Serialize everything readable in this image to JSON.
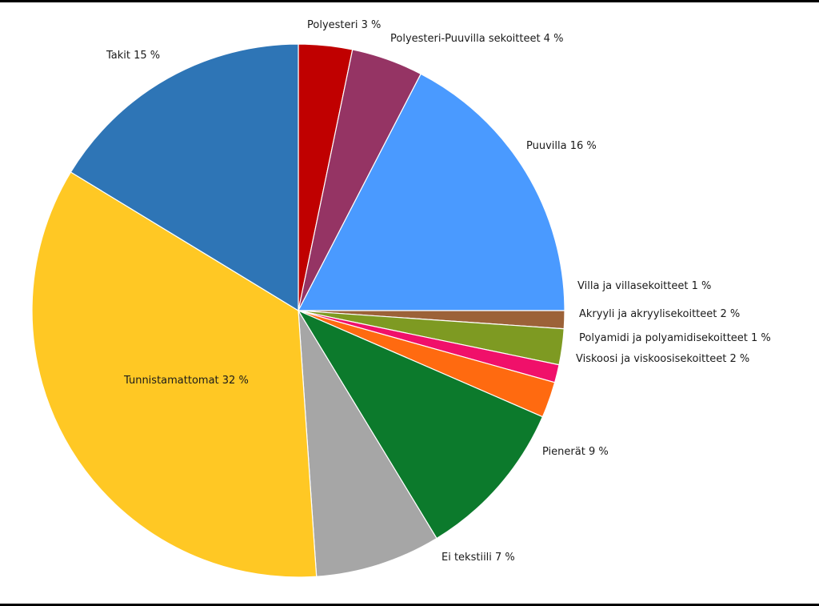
{
  "chart_data": {
    "type": "pie",
    "start_angle_deg": 0,
    "direction": "clockwise",
    "slices": [
      {
        "name": "Polyesteri",
        "value": 3,
        "label": "Polyesteri 3 %",
        "color": "#C00000"
      },
      {
        "name": "Polyesteri-Puuvilla sekoitteet",
        "value": 4,
        "label": "Polyesteri-Puuvilla sekoitteet 4 %",
        "color": "#953464"
      },
      {
        "name": "Puuvilla",
        "value": 16,
        "label": "Puuvilla 16 %",
        "color": "#4A9AFF"
      },
      {
        "name": "Villa ja villasekoitteet",
        "value": 1,
        "label": "Villa ja villasekoitteet 1 %",
        "color": "#9C6238"
      },
      {
        "name": "Akryyli ja akryylisekoitteet",
        "value": 2,
        "label": "Akryyli ja akryylisekoitteet 2 %",
        "color": "#7E9A22"
      },
      {
        "name": "Polyamidi ja polyamidisekoitteet",
        "value": 1,
        "label": "Polyamidi ja polyamidisekoitteet 1 %",
        "color": "#F0106A"
      },
      {
        "name": "Viskoosi ja viskoosisekoitteet",
        "value": 2,
        "label": "Viskoosi ja viskoosisekoitteet 2 %",
        "color": "#FF6A10"
      },
      {
        "name": "Pienerät",
        "value": 9,
        "label": "Pienerät 9 %",
        "color": "#0C7A2C"
      },
      {
        "name": "Ei tekstiili",
        "value": 7,
        "label": "Ei tekstiili 7 %",
        "color": "#A6A6A6"
      },
      {
        "name": "Tunnistamattomat",
        "value": 32,
        "label": "Tunnistamattomat 32 %",
        "color": "#FFC824"
      },
      {
        "name": "Takit",
        "value": 15,
        "label": "Takit 15 %",
        "color": "#2E75B6"
      }
    ]
  }
}
